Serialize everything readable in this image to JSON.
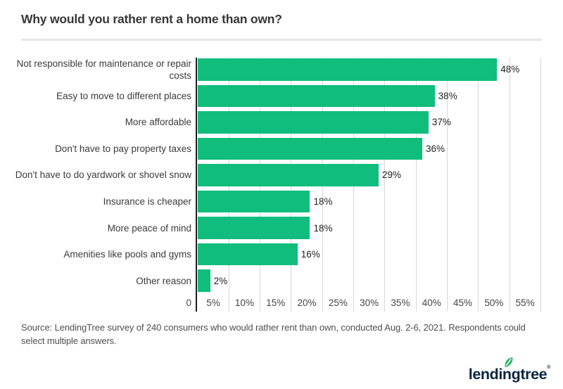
{
  "header": {
    "title": "Why would you rather rent a home than own?"
  },
  "chart_data": {
    "type": "bar",
    "orientation": "horizontal",
    "title": "Why would you rather rent a home than own?",
    "categories": [
      "Not responsible for maintenance or repair\ncosts",
      "Easy to move to different places",
      "More affordable",
      "Don't have to pay property taxes",
      "Don't have to do yardwork or shovel snow",
      "Insurance is cheaper",
      "More peace of mind",
      "Amenities like pools and gyms",
      "Other reason"
    ],
    "values": [
      48,
      38,
      37,
      36,
      29,
      18,
      18,
      16,
      2
    ],
    "value_labels": [
      "48%",
      "38%",
      "37%",
      "36%",
      "29%",
      "18%",
      "18%",
      "16%",
      "2%"
    ],
    "x_axis": {
      "min": 0,
      "max": 55,
      "tick_step": 5,
      "unit": "%",
      "tick_labels": [
        "0",
        "5%",
        "10%",
        "15%",
        "20%",
        "25%",
        "30%",
        "35%",
        "40%",
        "45%",
        "50%",
        "55%"
      ]
    },
    "grid": true,
    "legend": "none",
    "bar_color": "#10bd7d"
  },
  "footer": {
    "source": "Source: LendingTree survey of 240 consumers who would rather rent than own, conducted Aug. 2-6, 2021. Respondents could\nselect multiple answers.",
    "logo_text": "lendingtree",
    "logo_registered": "®"
  },
  "colors": {
    "bar_green": "#10bd7d",
    "leaf_green": "#2eb664",
    "logo_navy": "#0a2540",
    "axis_dark": "#1e1e1e",
    "gridline_gray": "#d7d7d7",
    "divider_gray": "#e5e5e5"
  }
}
